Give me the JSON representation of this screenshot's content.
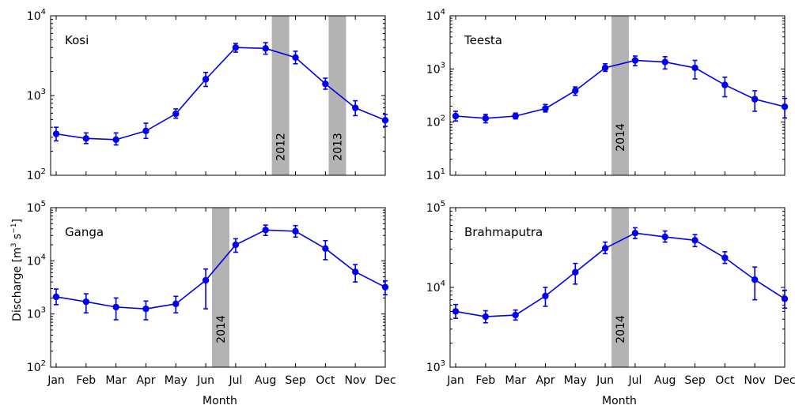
{
  "figure": {
    "ylabel": "Discharge [m³ s⁻¹]",
    "xlabel": "Month",
    "months": [
      "Jan",
      "Feb",
      "Mar",
      "Apr",
      "May",
      "Jun",
      "Jul",
      "Aug",
      "Sep",
      "Oct",
      "Nov",
      "Dec"
    ]
  },
  "colors": {
    "series": "#0000ee",
    "band": "#b3b3b3"
  },
  "chart_data": [
    {
      "type": "line",
      "title": "Kosi",
      "yscale": "log",
      "ylim": [
        100,
        10000
      ],
      "yticks": [
        2,
        3,
        4
      ],
      "x": [
        "Jan",
        "Feb",
        "Mar",
        "Apr",
        "May",
        "Jun",
        "Jul",
        "Aug",
        "Sep",
        "Oct",
        "Nov",
        "Dec"
      ],
      "values": [
        330,
        290,
        280,
        360,
        590,
        1600,
        4000,
        3900,
        3000,
        1400,
        700,
        490
      ],
      "err_low": [
        270,
        250,
        240,
        290,
        520,
        1300,
        3500,
        3300,
        2500,
        1200,
        560,
        410
      ],
      "err_high": [
        400,
        340,
        340,
        450,
        680,
        1950,
        4500,
        4600,
        3600,
        1650,
        860,
        580
      ],
      "bands": [
        {
          "label": "2012",
          "x": 7.5
        },
        {
          "label": "2013",
          "x": 9.4
        }
      ]
    },
    {
      "type": "line",
      "title": "Teesta",
      "yscale": "log",
      "ylim": [
        10,
        10000
      ],
      "yticks": [
        1,
        2,
        3,
        4
      ],
      "x": [
        "Jan",
        "Feb",
        "Mar",
        "Apr",
        "May",
        "Jun",
        "Jul",
        "Aug",
        "Sep",
        "Oct",
        "Nov",
        "Dec"
      ],
      "values": [
        130,
        118,
        130,
        180,
        390,
        1050,
        1450,
        1350,
        1050,
        500,
        270,
        195
      ],
      "err_low": [
        105,
        97,
        115,
        155,
        320,
        900,
        1150,
        1000,
        650,
        300,
        160,
        120
      ],
      "err_high": [
        160,
        140,
        148,
        215,
        460,
        1250,
        1750,
        1700,
        1450,
        700,
        390,
        280
      ],
      "bands": [
        {
          "label": "2014",
          "x": 5.5
        }
      ]
    },
    {
      "type": "line",
      "title": "Ganga",
      "yscale": "log",
      "ylim": [
        100,
        100000
      ],
      "yticks": [
        2,
        3,
        4,
        5
      ],
      "x": [
        "Jan",
        "Feb",
        "Mar",
        "Apr",
        "May",
        "Jun",
        "Jul",
        "Aug",
        "Sep",
        "Oct",
        "Nov",
        "Dec"
      ],
      "values": [
        2100,
        1700,
        1350,
        1250,
        1550,
        4300,
        20000,
        38000,
        36000,
        17000,
        6200,
        3200
      ],
      "err_low": [
        1500,
        1050,
        780,
        780,
        1050,
        1250,
        14500,
        30000,
        28000,
        10500,
        4000,
        2300
      ],
      "err_high": [
        2950,
        2400,
        2000,
        1750,
        2150,
        7000,
        26000,
        47000,
        46000,
        24000,
        8500,
        4200
      ],
      "bands": [
        {
          "label": "2014",
          "x": 5.5
        }
      ]
    },
    {
      "type": "line",
      "title": "Brahmaputra",
      "yscale": "log",
      "ylim": [
        1000,
        100000
      ],
      "yticks": [
        3,
        4,
        5
      ],
      "x": [
        "Jan",
        "Feb",
        "Mar",
        "Apr",
        "May",
        "Jun",
        "Jul",
        "Aug",
        "Sep",
        "Oct",
        "Nov",
        "Dec"
      ],
      "values": [
        5000,
        4300,
        4500,
        7800,
        15500,
        31000,
        48000,
        43000,
        39000,
        23500,
        12500,
        7200
      ],
      "err_low": [
        4100,
        3600,
        3900,
        5800,
        11000,
        26500,
        41000,
        37000,
        32500,
        20000,
        7000,
        5500
      ],
      "err_high": [
        6100,
        5100,
        5200,
        10000,
        20000,
        37000,
        56000,
        51000,
        46000,
        28000,
        18000,
        9200
      ],
      "bands": [
        {
          "label": "2014",
          "x": 5.5
        }
      ]
    }
  ]
}
